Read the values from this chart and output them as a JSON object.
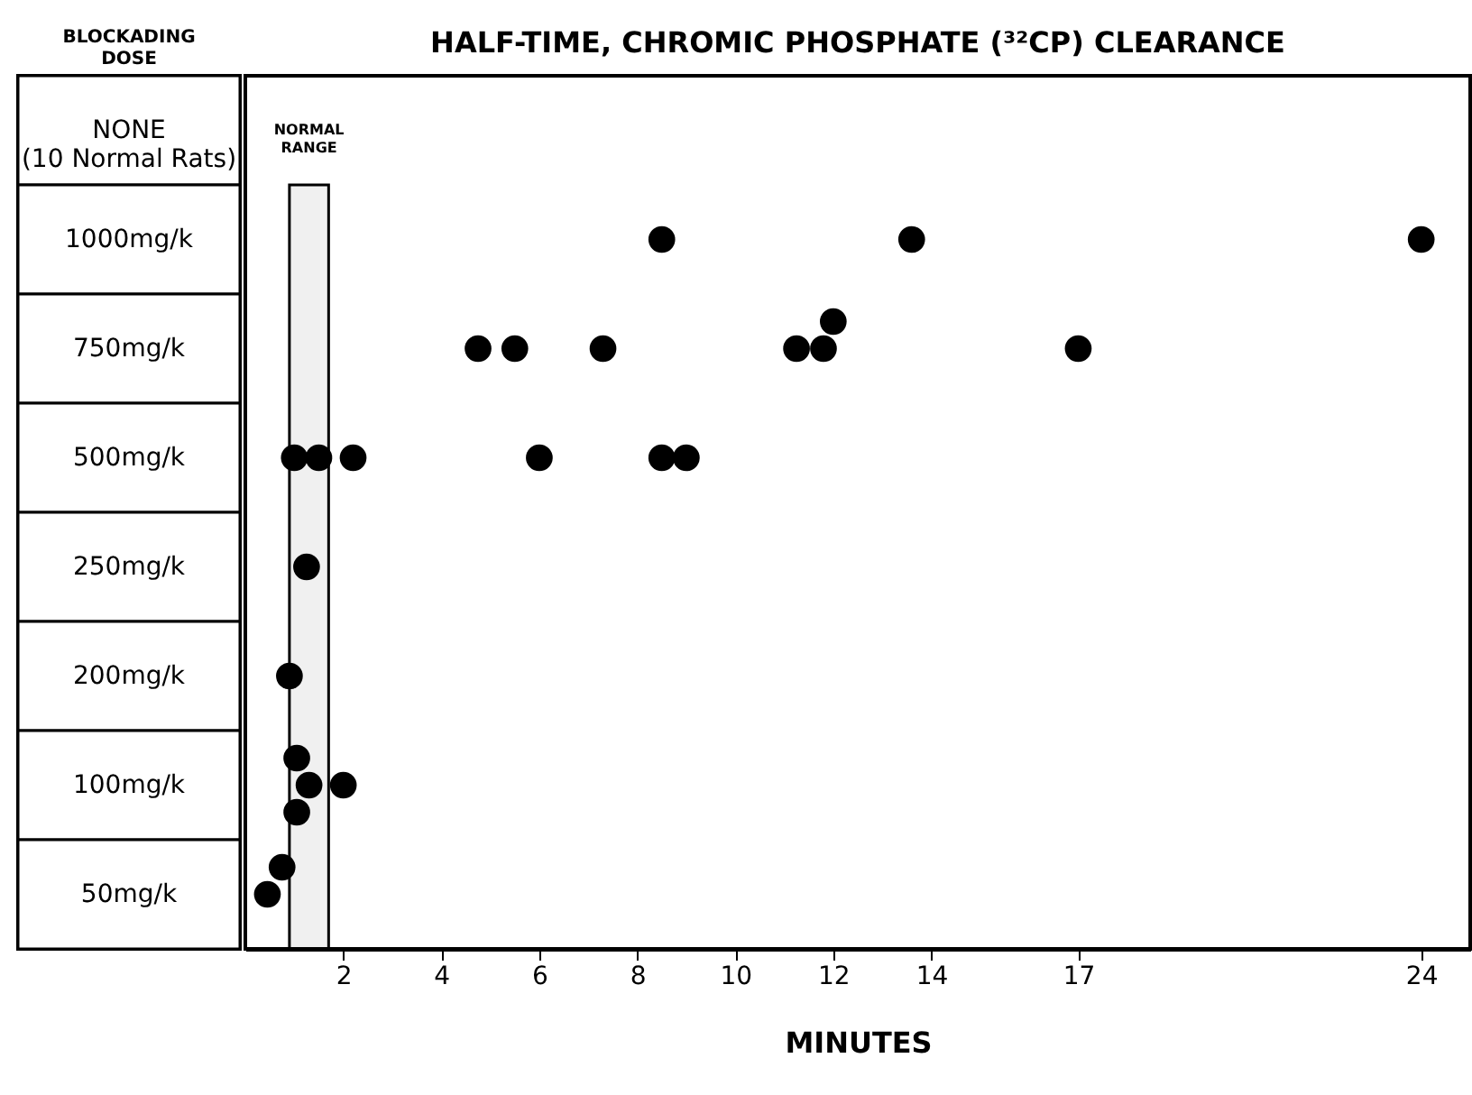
{
  "chart_data": {
    "type": "scatter",
    "orientation": "horizontal",
    "title": "HALF-TIME, CHROMIC PHOSPHATE (³²CP) CLEARANCE",
    "ylabel": "BLOCKADING DOSE",
    "xlabel": "MINUTES",
    "categories": [
      "NONE\n(10 Normal Rats)",
      "1000mg/k",
      "750mg/k",
      "500mg/k",
      "250mg/k",
      "200mg/k",
      "100mg/k",
      "50mg/k"
    ],
    "series": [
      {
        "color": "#000000",
        "values": [
          null,
          8.5,
          4.75,
          1.0,
          1.25,
          0.9,
          1.3,
          null
        ]
      },
      {
        "color": "#000000",
        "values": [
          null,
          13.6,
          5.5,
          1.5,
          null,
          null,
          2.0,
          null
        ]
      },
      {
        "color": "#000000",
        "values": [
          null,
          24,
          7.3,
          2.2,
          null,
          null,
          null,
          null
        ]
      },
      {
        "color": "#000000",
        "values": [
          null,
          null,
          11.25,
          6.0,
          null,
          null,
          null,
          null
        ]
      },
      {
        "color": "#000000",
        "values": [
          null,
          null,
          11.8,
          8.5,
          null,
          null,
          null,
          null
        ]
      },
      {
        "color": "#000000",
        "values": [
          null,
          null,
          17,
          9.0,
          null,
          null,
          null,
          null
        ]
      },
      {
        "color": "#000000",
        "values": [
          null,
          null,
          12.0,
          null,
          null,
          null,
          1.05,
          0.45
        ]
      },
      {
        "color": "#000000",
        "values": [
          null,
          null,
          null,
          null,
          null,
          null,
          1.05,
          0.75
        ]
      }
    ],
    "marker": "circle",
    "xlim": [
      0,
      25
    ],
    "xticks": [
      2,
      4,
      6,
      8,
      10,
      12,
      14,
      17,
      24
    ],
    "bands": [
      {
        "axis": "x",
        "from": 0.9,
        "to": 1.7,
        "label": "NORMAL RANGE"
      }
    ]
  }
}
